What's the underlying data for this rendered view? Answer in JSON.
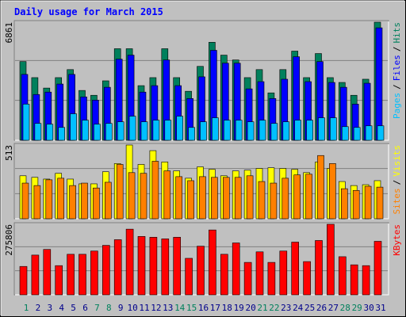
{
  "title": "Daily usage for March 2015",
  "separator": "/",
  "chart_data": [
    {
      "type": "bar",
      "ylim": [
        0,
        6861
      ],
      "yticks": [
        6861
      ],
      "series": [
        {
          "name": "Pages",
          "color": "#00C0FF",
          "values": [
            2100,
            980,
            933,
            747,
            1540,
            1167,
            933,
            980,
            1073,
            1400,
            1073,
            1167,
            1167,
            1400,
            747,
            1073,
            1307,
            1167,
            1167,
            1073,
            1167,
            980,
            1073,
            1167,
            1167,
            1307,
            1307,
            793,
            747,
            840,
            840
          ]
        },
        {
          "name": "Files",
          "color": "#0000FF",
          "values": [
            3827,
            2660,
            2800,
            3267,
            3827,
            2520,
            2334,
            3080,
            4714,
            4947,
            2800,
            3174,
            4667,
            3174,
            2427,
            3687,
            5227,
            4480,
            4480,
            2987,
            3407,
            2427,
            3547,
            4854,
            3407,
            4574,
            3360,
            3080,
            2100,
            3314,
            6534
          ]
        },
        {
          "name": "Hits",
          "color": "#00805C",
          "values": [
            4574,
            3640,
            3034,
            3640,
            4107,
            2894,
            2614,
            3454,
            5320,
            5320,
            3174,
            3640,
            5320,
            3640,
            2847,
            4294,
            5694,
            4947,
            4667,
            3640,
            4107,
            2754,
            4107,
            5180,
            3640,
            5040,
            3640,
            3360,
            2614,
            3547,
            6861
          ]
        }
      ]
    },
    {
      "type": "bar",
      "ylim": [
        0,
        513
      ],
      "yticks": [
        513
      ],
      "series": [
        {
          "name": "Sites",
          "color": "#FF8000",
          "values": [
            248,
            231,
            271,
            282,
            231,
            248,
            214,
            254,
            378,
            321,
            316,
            400,
            333,
            293,
            265,
            293,
            288,
            288,
            288,
            299,
            259,
            248,
            282,
            305,
            310,
            440,
            384,
            209,
            197,
            226,
            220
          ]
        },
        {
          "name": "Visits",
          "color": "#FFFF00",
          "values": [
            299,
            288,
            276,
            316,
            276,
            243,
            243,
            327,
            384,
            513,
            378,
            474,
            395,
            333,
            282,
            361,
            344,
            299,
            333,
            338,
            350,
            355,
            350,
            344,
            321,
            395,
            350,
            259,
            231,
            237,
            265
          ]
        }
      ]
    },
    {
      "type": "bar",
      "ylim": [
        0,
        275806
      ],
      "yticks": [
        275806
      ],
      "categories": [
        "1",
        "2",
        "3",
        "4",
        "5",
        "6",
        "7",
        "8",
        "9",
        "10",
        "11",
        "12",
        "13",
        "14",
        "15",
        "16",
        "17",
        "18",
        "19",
        "20",
        "21",
        "22",
        "23",
        "24",
        "25",
        "26",
        "27",
        "28",
        "29",
        "30",
        "31"
      ],
      "category_colors": [
        "#00805C",
        "#00008B",
        "#00008B",
        "#00008B",
        "#00008B",
        "#00008B",
        "#00805C",
        "#00805C",
        "#00008B",
        "#00008B",
        "#00008B",
        "#00008B",
        "#00008B",
        "#00805C",
        "#00805C",
        "#00008B",
        "#00008B",
        "#00008B",
        "#00008B",
        "#00008B",
        "#00805C",
        "#00805C",
        "#00008B",
        "#00008B",
        "#00008B",
        "#00008B",
        "#00008B",
        "#00805C",
        "#00805C",
        "#00008B",
        "#00008B"
      ],
      "series": [
        {
          "name": "KBytes",
          "color": "#FF0000",
          "values": [
            110950,
            155330,
            177520,
            114120,
            158500,
            158500,
            171180,
            193370,
            215560,
            256770,
            228240,
            225070,
            218730,
            225070,
            142650,
            190200,
            253600,
            158500,
            202880,
            126800,
            168010,
            126800,
            171180,
            206050,
            129970,
            212390,
            275806,
            148990,
            117290,
            114120,
            209220
          ]
        }
      ]
    }
  ]
}
